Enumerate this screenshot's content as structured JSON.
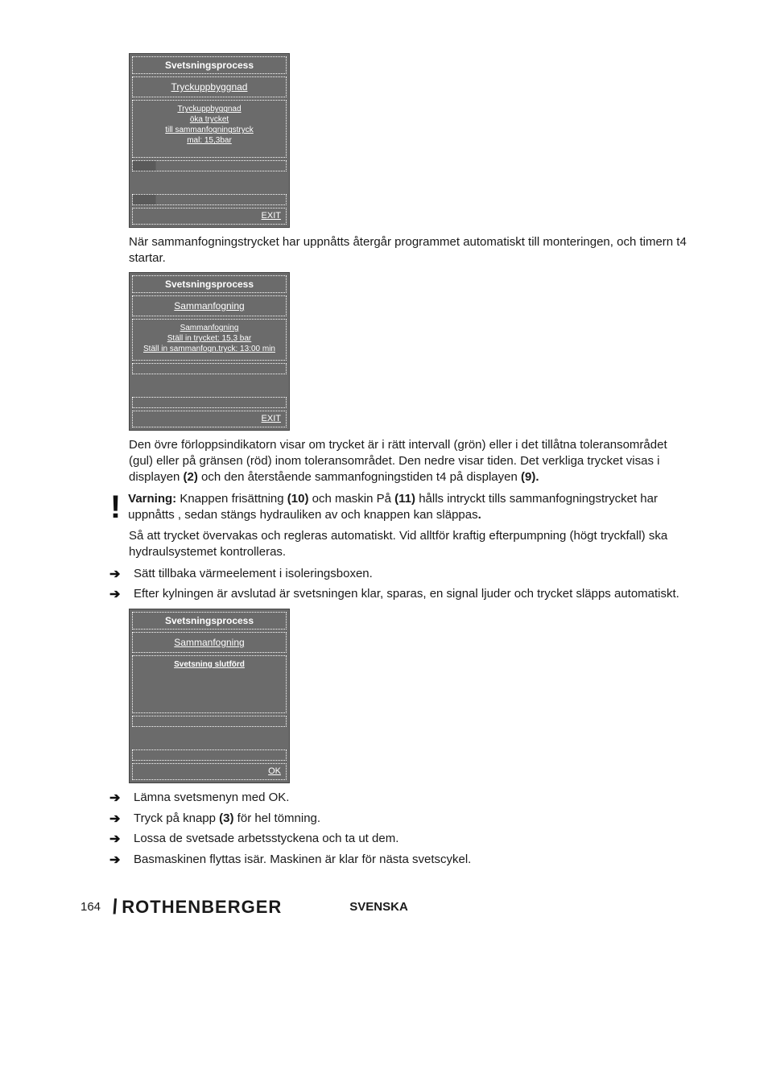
{
  "colors": {
    "screen_bg": "#6b6b6b",
    "screen_text": "#ffffff",
    "body_text": "#1a1a1a",
    "page_bg": "#ffffff"
  },
  "screen1": {
    "title": "Svetsningsprocess",
    "subtitle": "Tryckuppbyggnad",
    "msg_l1": "Tryckuppbyggnad",
    "msg_l2": "öka trycket",
    "msg_l3": "till sammanfogningstryck",
    "msg_l4": "mal: 15,3bar",
    "exit": "EXIT"
  },
  "para1": "När sammanfogningstrycket har uppnåtts återgår programmet automatiskt till monteringen, och timern t4 startar.",
  "screen2": {
    "title": "Svetsningsprocess",
    "subtitle": "Sammanfogning",
    "msg_l1": "Sammanfogning",
    "msg_l2": "Ställ in trycket: 15,3 bar",
    "msg_l3": "Ställ in sammanfogn.tryck: 13:00 min",
    "exit": "EXIT"
  },
  "para2": {
    "t1": "Den övre förloppsindikatorn visar om trycket är i rätt intervall (grön) eller i det tillåtna toleransområdet (gul) eller på gränsen (röd) inom toleransområdet. Den nedre visar tiden. Det verkliga trycket visas i displayen ",
    "b1": "(2)",
    "t2": " och den återstående sammanfogningstiden t4 på displayen ",
    "b2": "(9)."
  },
  "warn": {
    "label": "Varning:",
    "t1": " Knappen frisättning ",
    "b1": "(10)",
    "t2": " och maskin På ",
    "b2": "(11)",
    "t3": " hålls intryckt tills sammanfogningstrycket har uppnåtts , sedan stängs hydrauliken av och knappen kan släppas",
    "dot": "."
  },
  "para3": "Så att trycket övervakas och regleras automatiskt. Vid alltför kraftig efterpumpning (högt tryckfall) ska hydraulsystemet kontrolleras.",
  "bullets1": {
    "b1": "Sätt tillbaka värmeelement i isoleringsboxen.",
    "b2": "Efter kylningen är avslutad är svetsningen klar, sparas, en signal ljuder och trycket släpps automatiskt."
  },
  "screen3": {
    "title": "Svetsningsprocess",
    "subtitle": "Sammanfogning",
    "msg_l1": "Svetsning slutförd",
    "exit": "OK"
  },
  "bullets2": {
    "b1": "Lämna svetsmenyn med OK.",
    "b2_t1": "Tryck på knapp ",
    "b2_b": "(3)",
    "b2_t2": " för hel tömning.",
    "b3": "Lossa de svetsade arbetsstyckena och ta ut dem.",
    "b4": "Basmaskinen flyttas isär. Maskinen är klar för nästa svetscykel."
  },
  "footer": {
    "page": "164",
    "brand": "ROTHENBERGER",
    "lang": "SVENSKA"
  }
}
